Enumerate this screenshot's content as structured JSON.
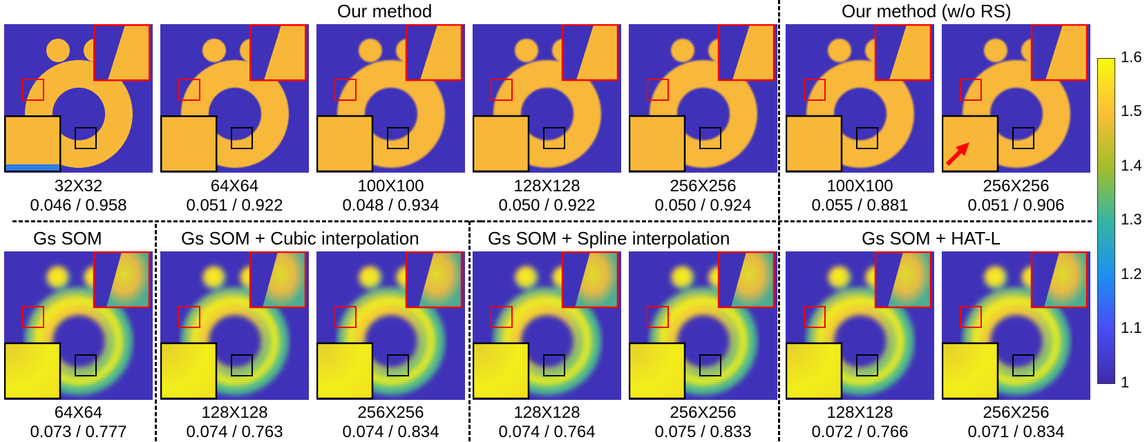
{
  "headers": {
    "our_method": "Our method",
    "our_method_wo_rs": "Our method (w/o RS)",
    "gs_som": "Gs SOM",
    "gs_som_cubic": "Gs SOM + Cubic interpolation",
    "gs_som_spline": "Gs SOM + Spline interpolation",
    "gs_som_hat": "Gs SOM + HAT-L"
  },
  "top_row": [
    {
      "resolution": "32X32",
      "metrics": "0.046 / 0.958"
    },
    {
      "resolution": "64X64",
      "metrics": "0.051 / 0.922"
    },
    {
      "resolution": "100X100",
      "metrics": "0.048 / 0.934"
    },
    {
      "resolution": "128X128",
      "metrics": "0.050 / 0.922"
    },
    {
      "resolution": "256X256",
      "metrics": "0.050 / 0.924"
    },
    {
      "resolution": "100X100",
      "metrics": "0.055 / 0.881"
    },
    {
      "resolution": "256X256",
      "metrics": "0.051 / 0.906"
    }
  ],
  "bottom_row": [
    {
      "resolution": "64X64",
      "metrics": "0.073 / 0.777"
    },
    {
      "resolution": "128X128",
      "metrics": "0.074 / 0.763"
    },
    {
      "resolution": "256X256",
      "metrics": "0.074 / 0.834"
    },
    {
      "resolution": "128X128",
      "metrics": "0.074 / 0.764"
    },
    {
      "resolution": "256X256",
      "metrics": "0.075 / 0.833"
    },
    {
      "resolution": "128X128",
      "metrics": "0.072 / 0.766"
    },
    {
      "resolution": "256X256",
      "metrics": "0.071 / 0.834"
    }
  ],
  "colorbar": {
    "ticks": [
      "1.6",
      "1.5",
      "1.4",
      "1.3",
      "1.2",
      "1.1",
      "1"
    ],
    "colors": [
      "#f9fb0e",
      "#fbbf38",
      "#a4be2a",
      "#35b6a2",
      "#1e8ff0",
      "#4a4cf4",
      "#3f2ba9"
    ]
  },
  "colors": {
    "background": "#3f32b8",
    "object": "#f7b83a",
    "highlight": "#f2ee1c",
    "zoom_red": "#ff0000",
    "zoom_black": "#000000"
  }
}
